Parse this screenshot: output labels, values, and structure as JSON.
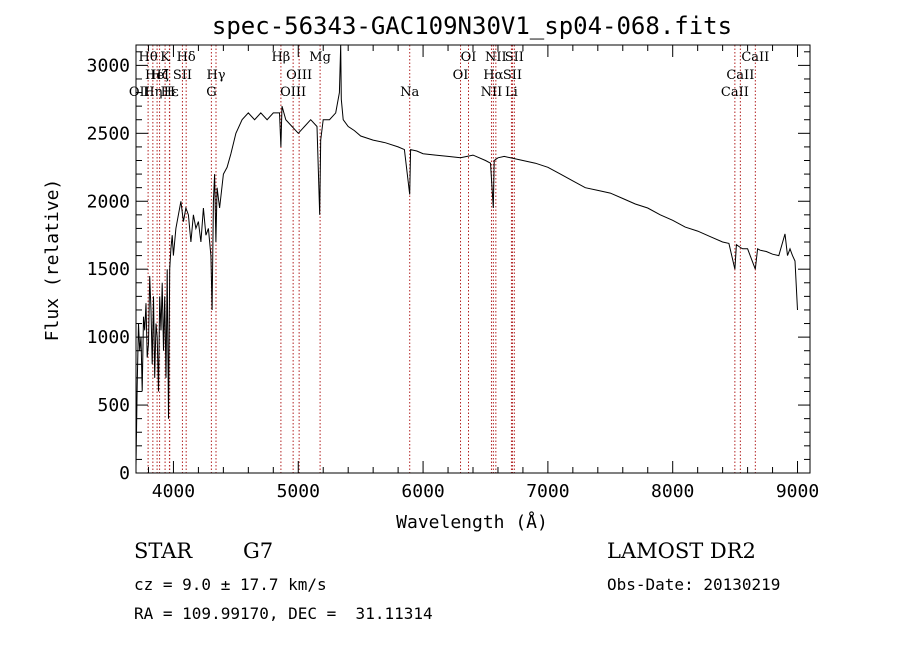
{
  "chart_data": {
    "type": "line",
    "title": "spec-56343-GAC109N30V1_sp04-068.fits",
    "xlabel": "Wavelength (Å)",
    "ylabel": "Flux (relative)",
    "xlim": [
      3700,
      9100
    ],
    "ylim": [
      0,
      3150
    ],
    "x_ticks": [
      4000,
      5000,
      6000,
      7000,
      8000,
      9000
    ],
    "y_ticks": [
      0,
      500,
      1000,
      1500,
      2000,
      2500,
      3000
    ],
    "grid": false,
    "line_color": "#000000",
    "marker_color": "#b22222",
    "spectrum": {
      "x": [
        3700,
        3710,
        3720,
        3730,
        3740,
        3750,
        3760,
        3770,
        3780,
        3790,
        3800,
        3810,
        3820,
        3830,
        3840,
        3850,
        3860,
        3870,
        3880,
        3890,
        3900,
        3910,
        3920,
        3930,
        3940,
        3950,
        3960,
        3970,
        3980,
        3990,
        4000,
        4020,
        4040,
        4060,
        4080,
        4100,
        4120,
        4140,
        4160,
        4180,
        4200,
        4220,
        4240,
        4260,
        4280,
        4300,
        4310,
        4320,
        4330,
        4340,
        4350,
        4370,
        4400,
        4430,
        4460,
        4500,
        4550,
        4600,
        4650,
        4700,
        4750,
        4800,
        4850,
        4861,
        4870,
        4900,
        4950,
        5000,
        5050,
        5100,
        5150,
        5172,
        5180,
        5200,
        5250,
        5300,
        5330,
        5340,
        5345,
        5360,
        5400,
        5450,
        5500,
        5600,
        5700,
        5800,
        5850,
        5893,
        5900,
        5950,
        6000,
        6100,
        6200,
        6300,
        6400,
        6500,
        6540,
        6563,
        6570,
        6600,
        6650,
        6700,
        6800,
        6900,
        7000,
        7100,
        7200,
        7300,
        7400,
        7500,
        7600,
        7700,
        7800,
        7900,
        8000,
        8100,
        8200,
        8300,
        8400,
        8450,
        8498,
        8510,
        8542,
        8560,
        8600,
        8662,
        8680,
        8700,
        8750,
        8800,
        8850,
        8900,
        8920,
        8940,
        8960,
        8980,
        9000
      ],
      "y": [
        50,
        650,
        1100,
        900,
        1000,
        600,
        1150,
        1050,
        1250,
        850,
        950,
        1450,
        1200,
        800,
        1300,
        700,
        1100,
        1000,
        600,
        1300,
        1050,
        1400,
        900,
        1300,
        700,
        1500,
        400,
        1500,
        1650,
        1750,
        1600,
        1800,
        1900,
        2000,
        1850,
        1950,
        1900,
        1700,
        1900,
        1800,
        1850,
        1700,
        1950,
        1750,
        1800,
        1600,
        1200,
        2000,
        2200,
        1700,
        2100,
        1950,
        2200,
        2250,
        2350,
        2500,
        2600,
        2650,
        2600,
        2650,
        2600,
        2650,
        2650,
        2400,
        2700,
        2600,
        2550,
        2500,
        2550,
        2600,
        2550,
        1900,
        2450,
        2600,
        2600,
        2650,
        2800,
        3150,
        2750,
        2600,
        2550,
        2520,
        2480,
        2450,
        2430,
        2400,
        2380,
        2050,
        2380,
        2370,
        2350,
        2340,
        2330,
        2320,
        2340,
        2300,
        2280,
        1950,
        2300,
        2320,
        2330,
        2320,
        2300,
        2280,
        2250,
        2200,
        2150,
        2100,
        2080,
        2060,
        2020,
        1980,
        1950,
        1900,
        1860,
        1810,
        1780,
        1740,
        1700,
        1690,
        1500,
        1680,
        1660,
        1650,
        1650,
        1500,
        1650,
        1640,
        1630,
        1610,
        1600,
        1760,
        1600,
        1650,
        1600,
        1560,
        1200
      ]
    },
    "lines": [
      {
        "wl": 3797,
        "label": "Hθ",
        "row": 0
      },
      {
        "wl": 3835,
        "label": "Hη",
        "row": 2
      },
      {
        "wl": 3869,
        "label": "HeI",
        "row": 1
      },
      {
        "wl": 3889,
        "label": "Hζ",
        "row": 1
      },
      {
        "wl": 3933,
        "label": "K",
        "row": 0
      },
      {
        "wl": 3968,
        "label": "H",
        "row": 2
      },
      {
        "wl": 3970,
        "label": "Hε",
        "row": 2
      },
      {
        "wl": 4072,
        "label": "SII",
        "row": 1
      },
      {
        "wl": 4102,
        "label": "Hδ",
        "row": 0
      },
      {
        "wl": 4304,
        "label": "G",
        "row": 2
      },
      {
        "wl": 4341,
        "label": "Hγ",
        "row": 1
      },
      {
        "wl": 4861,
        "label": "Hβ",
        "row": 0
      },
      {
        "wl": 4959,
        "label": "OIII",
        "row": 2
      },
      {
        "wl": 5007,
        "label": "OIII",
        "row": 1
      },
      {
        "wl": 5175,
        "label": "Mg",
        "row": 0
      },
      {
        "wl": 5893,
        "label": "Na",
        "row": 2
      },
      {
        "wl": 6300,
        "label": "OI",
        "row": 1
      },
      {
        "wl": 6364,
        "label": "OI",
        "row": 0
      },
      {
        "wl": 6548,
        "label": "NII",
        "row": 2
      },
      {
        "wl": 6563,
        "label": "Hα",
        "row": 1
      },
      {
        "wl": 6583,
        "label": "NII",
        "row": 0
      },
      {
        "wl": 6708,
        "label": "Li",
        "row": 2
      },
      {
        "wl": 6716,
        "label": "SII",
        "row": 1
      },
      {
        "wl": 6731,
        "label": "SII",
        "row": 0
      },
      {
        "wl": 8498,
        "label": "CaII",
        "row": 2
      },
      {
        "wl": 8542,
        "label": "CaII",
        "row": 1
      },
      {
        "wl": 8662,
        "label": "CaII",
        "row": 0
      }
    ],
    "extra_label": {
      "wl": 3727,
      "label": "OII",
      "row": 2
    }
  },
  "info": {
    "class": "STAR",
    "subclass": "G7",
    "redshift": "cz = 9.0 ± 17.7 km/s",
    "coords": "RA = 109.99170, DEC =  31.11314",
    "survey": "LAMOST DR2",
    "obs_date": "Obs-Date: 20130219"
  }
}
